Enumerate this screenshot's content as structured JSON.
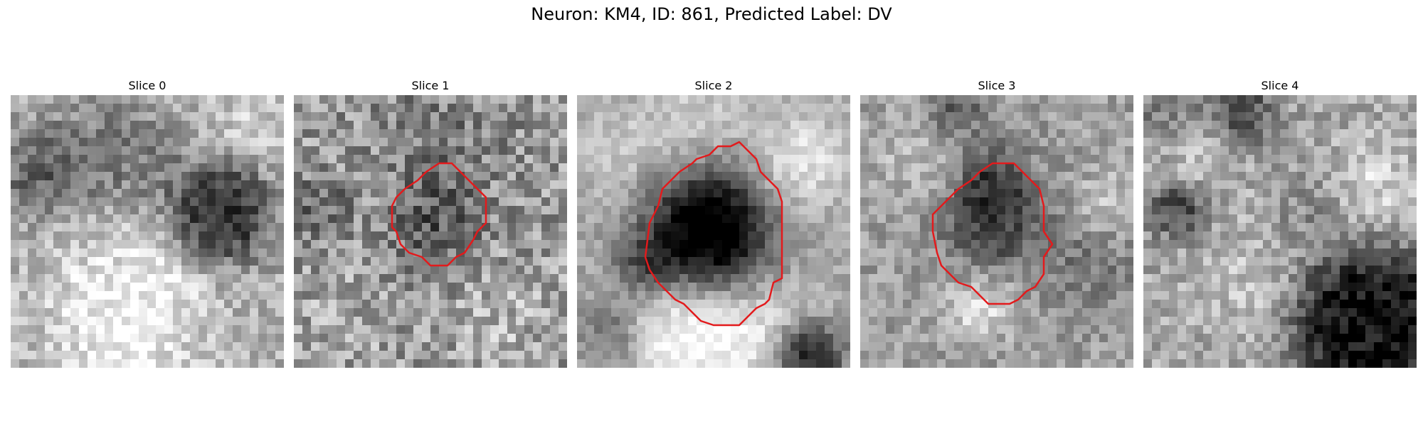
{
  "figure": {
    "title": "Neuron: KM4, ID: 861, Predicted Label: DV"
  },
  "panels": [
    {
      "label": "Slice 0",
      "has_contour": false
    },
    {
      "label": "Slice 1",
      "has_contour": true
    },
    {
      "label": "Slice 2",
      "has_contour": true
    },
    {
      "label": "Slice 3",
      "has_contour": true
    },
    {
      "label": "Slice 4",
      "has_contour": false
    }
  ],
  "colors": {
    "contour": "#e31a1c",
    "background": "#ffffff"
  }
}
